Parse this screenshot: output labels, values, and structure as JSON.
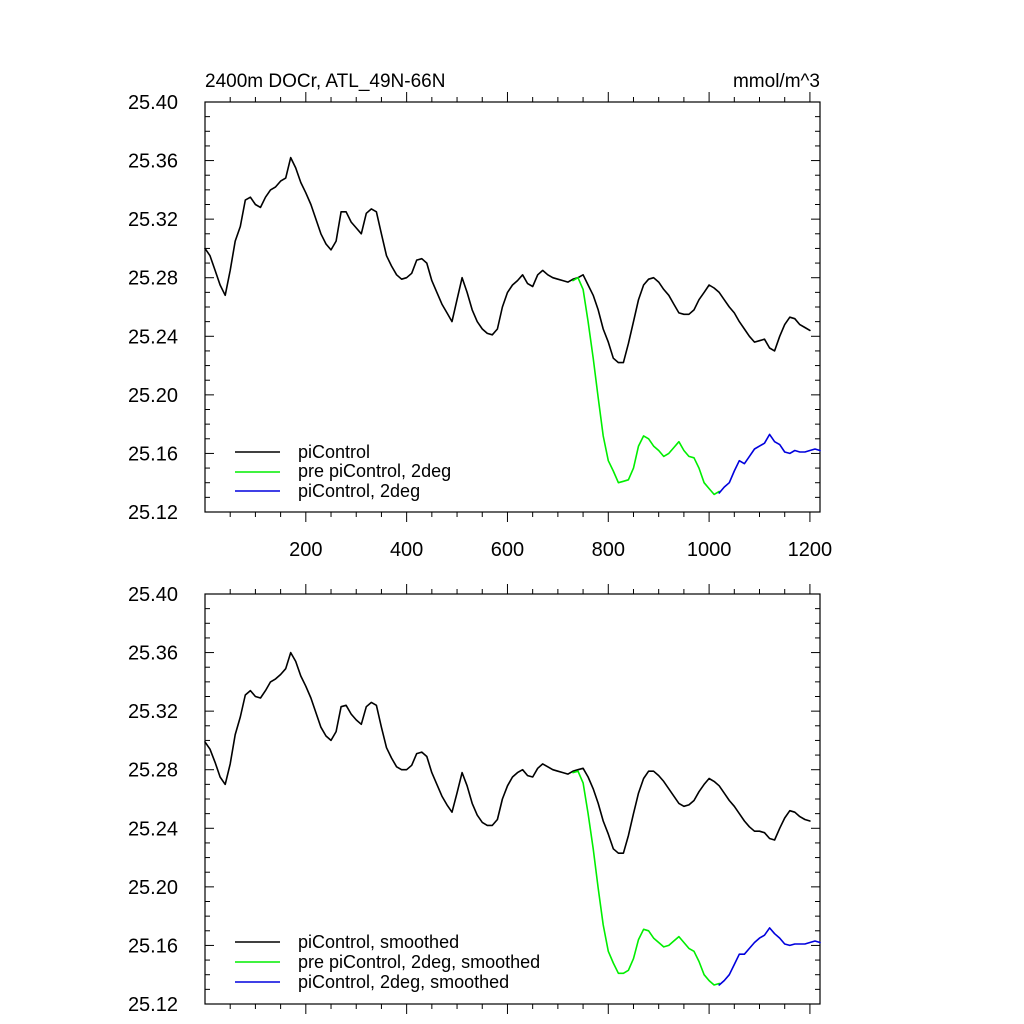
{
  "chart_data": [
    {
      "type": "line",
      "title": "2400m DOCr, ATL_49N-66N",
      "units": "mmol/m^3",
      "xlabel": "",
      "ylabel": "",
      "xlim": [
        0,
        1220
      ],
      "ylim": [
        25.12,
        25.4
      ],
      "xticks": [
        200,
        400,
        600,
        800,
        1000,
        1200
      ],
      "xtick_labels": [
        "200",
        "400",
        "600",
        "800",
        "1000",
        "1200"
      ],
      "yticks": [
        25.12,
        25.16,
        25.2,
        25.24,
        25.28,
        25.32,
        25.36,
        25.4
      ],
      "ytick_labels": [
        "25.12",
        "25.16",
        "25.20",
        "25.24",
        "25.28",
        "25.32",
        "25.36",
        "25.40"
      ],
      "legend_position": "bottom-left",
      "series": [
        {
          "name": "piControl",
          "color": "#000000",
          "x": [
            0,
            10,
            20,
            30,
            40,
            50,
            60,
            70,
            80,
            90,
            100,
            110,
            120,
            130,
            140,
            150,
            160,
            170,
            180,
            190,
            200,
            210,
            220,
            230,
            240,
            250,
            260,
            270,
            280,
            290,
            300,
            310,
            320,
            330,
            340,
            350,
            360,
            370,
            380,
            390,
            400,
            410,
            420,
            430,
            440,
            450,
            460,
            470,
            480,
            490,
            500,
            510,
            520,
            530,
            540,
            550,
            560,
            570,
            580,
            590,
            600,
            610,
            620,
            630,
            640,
            650,
            660,
            670,
            680,
            690,
            700,
            710,
            720,
            730,
            740,
            750,
            760,
            770,
            780,
            790,
            800,
            810,
            820,
            830,
            840,
            850,
            860,
            870,
            880,
            890,
            900,
            910,
            920,
            930,
            940,
            950,
            960,
            970,
            980,
            990,
            1000,
            1010,
            1020,
            1030,
            1040,
            1050,
            1060,
            1070,
            1080,
            1090,
            1100,
            1110,
            1120,
            1130,
            1140,
            1150,
            1160,
            1170,
            1180,
            1190,
            1200
          ],
          "values": [
            25.3,
            25.295,
            25.285,
            25.275,
            25.268,
            25.285,
            25.305,
            25.315,
            25.333,
            25.335,
            25.33,
            25.328,
            25.335,
            25.34,
            25.342,
            25.346,
            25.348,
            25.362,
            25.355,
            25.345,
            25.338,
            25.33,
            25.32,
            25.31,
            25.303,
            25.299,
            25.305,
            25.325,
            25.325,
            25.318,
            25.314,
            25.31,
            25.324,
            25.327,
            25.325,
            25.31,
            25.295,
            25.288,
            25.282,
            25.279,
            25.28,
            25.283,
            25.292,
            25.293,
            25.29,
            25.278,
            25.27,
            25.262,
            25.256,
            25.25,
            25.265,
            25.28,
            25.27,
            25.258,
            25.25,
            25.245,
            25.242,
            25.241,
            25.245,
            25.26,
            25.27,
            25.275,
            25.278,
            25.282,
            25.276,
            25.274,
            25.282,
            25.285,
            25.282,
            25.28,
            25.279,
            25.278,
            25.277,
            25.279,
            25.28,
            25.282,
            25.275,
            25.268,
            25.258,
            25.245,
            25.236,
            25.225,
            25.222,
            25.222,
            25.235,
            25.25,
            25.265,
            25.275,
            25.279,
            25.28,
            25.277,
            25.272,
            25.268,
            25.262,
            25.256,
            25.255,
            25.255,
            25.258,
            25.265,
            25.27,
            25.275,
            25.273,
            25.27,
            25.265,
            25.26,
            25.256,
            25.25,
            25.245,
            25.24,
            25.236,
            25.237,
            25.238,
            25.232,
            25.23,
            25.24,
            25.248,
            25.253,
            25.252,
            25.248,
            25.246,
            25.244
          ]
        },
        {
          "name": "pre piControl, 2deg",
          "color": "#00ee00",
          "x": [
            730,
            740,
            750,
            760,
            770,
            780,
            790,
            800,
            810,
            820,
            830,
            840,
            850,
            860,
            870,
            880,
            890,
            900,
            910,
            920,
            930,
            940,
            950,
            960,
            970,
            980,
            990,
            1000,
            1010,
            1020
          ],
          "values": [
            25.278,
            25.28,
            25.272,
            25.25,
            25.225,
            25.198,
            25.172,
            25.155,
            25.148,
            25.14,
            25.141,
            25.142,
            25.15,
            25.165,
            25.172,
            25.17,
            25.165,
            25.162,
            25.158,
            25.16,
            25.164,
            25.168,
            25.162,
            25.158,
            25.157,
            25.15,
            25.14,
            25.136,
            25.132,
            25.134
          ]
        },
        {
          "name": "piControl, 2deg",
          "color": "#0000dd",
          "x": [
            1020,
            1030,
            1040,
            1050,
            1060,
            1070,
            1080,
            1090,
            1100,
            1110,
            1120,
            1130,
            1140,
            1150,
            1160,
            1170,
            1180,
            1190,
            1200,
            1210,
            1220
          ],
          "values": [
            25.133,
            25.137,
            25.14,
            25.148,
            25.155,
            25.153,
            25.158,
            25.163,
            25.165,
            25.167,
            25.173,
            25.168,
            25.166,
            25.161,
            25.16,
            25.162,
            25.161,
            25.161,
            25.162,
            25.163,
            25.162
          ]
        }
      ]
    },
    {
      "type": "line",
      "title": "",
      "xlabel": "",
      "ylabel": "",
      "xlim": [
        0,
        1220
      ],
      "ylim": [
        25.12,
        25.4
      ],
      "xticks": [
        200,
        400,
        600,
        800,
        1000,
        1200
      ],
      "yticks": [
        25.12,
        25.16,
        25.2,
        25.24,
        25.28,
        25.32,
        25.36,
        25.4
      ],
      "ytick_labels": [
        "25.12",
        "25.16",
        "25.20",
        "25.24",
        "25.28",
        "25.32",
        "25.36",
        "25.40"
      ],
      "legend_position": "bottom-left",
      "series": [
        {
          "name": "piControl, smoothed",
          "color": "#000000",
          "x": [
            0,
            10,
            20,
            30,
            40,
            50,
            60,
            70,
            80,
            90,
            100,
            110,
            120,
            130,
            140,
            150,
            160,
            170,
            180,
            190,
            200,
            210,
            220,
            230,
            240,
            250,
            260,
            270,
            280,
            290,
            300,
            310,
            320,
            330,
            340,
            350,
            360,
            370,
            380,
            390,
            400,
            410,
            420,
            430,
            440,
            450,
            460,
            470,
            480,
            490,
            500,
            510,
            520,
            530,
            540,
            550,
            560,
            570,
            580,
            590,
            600,
            610,
            620,
            630,
            640,
            650,
            660,
            670,
            680,
            690,
            700,
            710,
            720,
            730,
            740,
            750,
            760,
            770,
            780,
            790,
            800,
            810,
            820,
            830,
            840,
            850,
            860,
            870,
            880,
            890,
            900,
            910,
            920,
            930,
            940,
            950,
            960,
            970,
            980,
            990,
            1000,
            1010,
            1020,
            1030,
            1040,
            1050,
            1060,
            1070,
            1080,
            1090,
            1100,
            1110,
            1120,
            1130,
            1140,
            1150,
            1160,
            1170,
            1180,
            1190,
            1200
          ],
          "values": [
            25.299,
            25.294,
            25.285,
            25.275,
            25.27,
            25.284,
            25.304,
            25.316,
            25.331,
            25.334,
            25.33,
            25.329,
            25.334,
            25.34,
            25.342,
            25.345,
            25.349,
            25.36,
            25.354,
            25.344,
            25.337,
            25.329,
            25.319,
            25.309,
            25.303,
            25.3,
            25.306,
            25.323,
            25.324,
            25.318,
            25.314,
            25.311,
            25.323,
            25.326,
            25.324,
            25.309,
            25.295,
            25.288,
            25.282,
            25.28,
            25.28,
            25.283,
            25.291,
            25.292,
            25.289,
            25.278,
            25.27,
            25.262,
            25.256,
            25.251,
            25.264,
            25.278,
            25.269,
            25.257,
            25.249,
            25.244,
            25.242,
            25.242,
            25.246,
            25.26,
            25.269,
            25.275,
            25.278,
            25.28,
            25.276,
            25.275,
            25.281,
            25.284,
            25.282,
            25.28,
            25.279,
            25.278,
            25.277,
            25.279,
            25.28,
            25.281,
            25.275,
            25.267,
            25.257,
            25.245,
            25.236,
            25.226,
            25.223,
            25.223,
            25.235,
            25.25,
            25.264,
            25.274,
            25.279,
            25.279,
            25.276,
            25.272,
            25.267,
            25.262,
            25.257,
            25.255,
            25.256,
            25.259,
            25.265,
            25.27,
            25.274,
            25.272,
            25.269,
            25.264,
            25.259,
            25.255,
            25.25,
            25.245,
            25.241,
            25.238,
            25.238,
            25.237,
            25.233,
            25.232,
            25.24,
            25.247,
            25.252,
            25.251,
            25.248,
            25.246,
            25.245
          ]
        },
        {
          "name": "pre piControl, 2deg, smoothed",
          "color": "#00ee00",
          "x": [
            730,
            740,
            750,
            760,
            770,
            780,
            790,
            800,
            810,
            820,
            830,
            840,
            850,
            860,
            870,
            880,
            890,
            900,
            910,
            920,
            930,
            940,
            950,
            960,
            970,
            980,
            990,
            1000,
            1010,
            1020
          ],
          "values": [
            25.278,
            25.279,
            25.271,
            25.25,
            25.226,
            25.199,
            25.174,
            25.156,
            25.148,
            25.141,
            25.141,
            25.143,
            25.151,
            25.164,
            25.171,
            25.17,
            25.165,
            25.162,
            25.159,
            25.16,
            25.163,
            25.166,
            25.162,
            25.158,
            25.156,
            25.149,
            25.14,
            25.136,
            25.133,
            25.134
          ]
        },
        {
          "name": "piControl, 2deg, smoothed",
          "color": "#0000dd",
          "x": [
            1020,
            1030,
            1040,
            1050,
            1060,
            1070,
            1080,
            1090,
            1100,
            1110,
            1120,
            1130,
            1140,
            1150,
            1160,
            1170,
            1180,
            1190,
            1200,
            1210,
            1220
          ],
          "values": [
            25.133,
            25.136,
            25.14,
            25.147,
            25.154,
            25.154,
            25.158,
            25.162,
            25.165,
            25.167,
            25.172,
            25.168,
            25.165,
            25.161,
            25.16,
            25.161,
            25.161,
            25.161,
            25.162,
            25.163,
            25.162
          ]
        }
      ]
    }
  ]
}
